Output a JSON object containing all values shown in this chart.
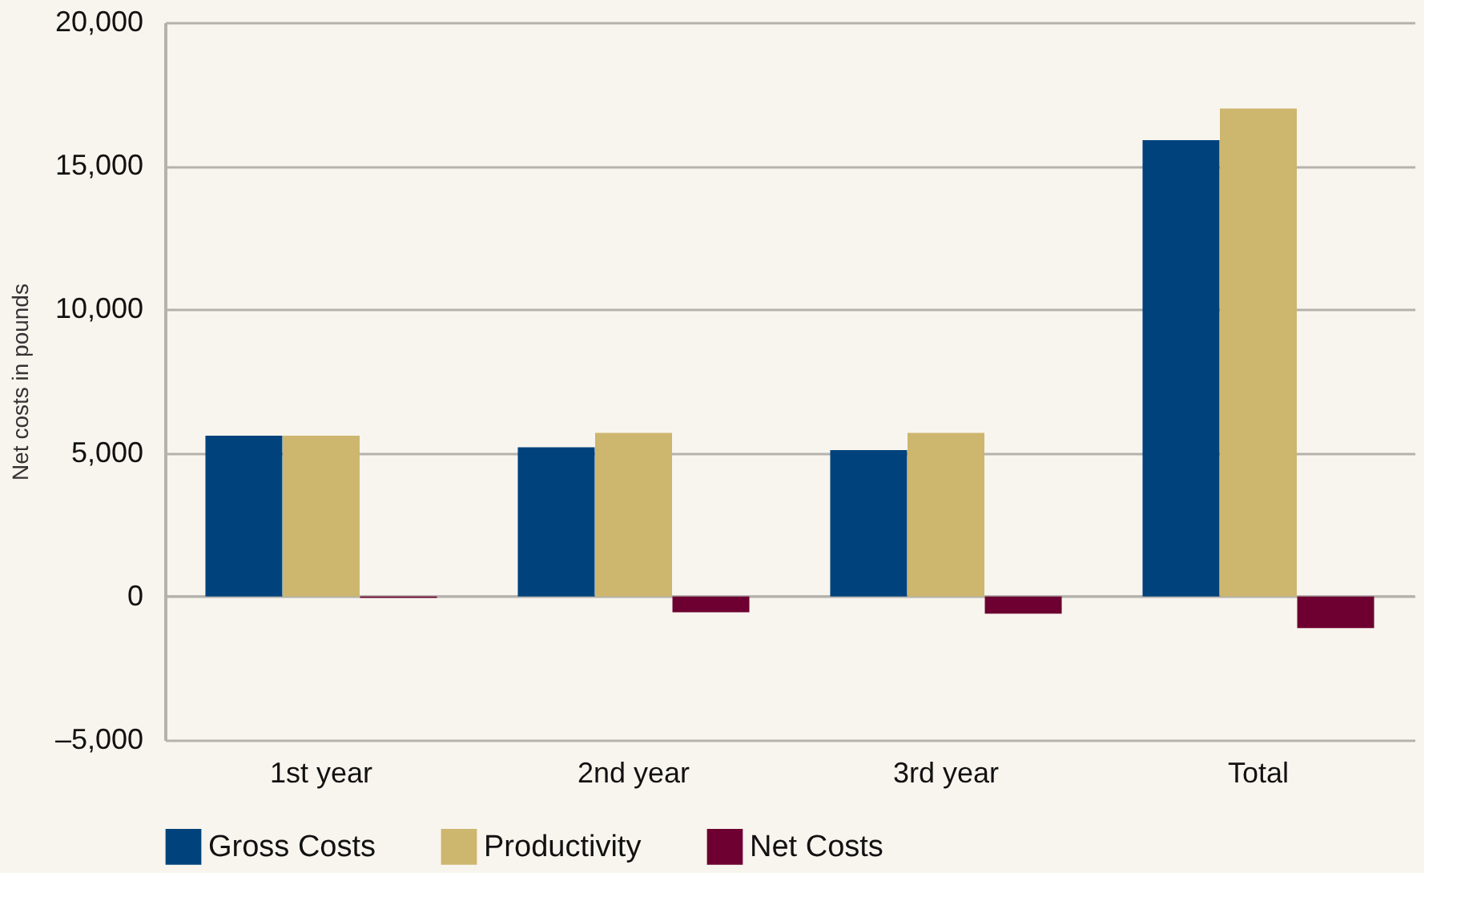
{
  "chart_data": {
    "type": "bar",
    "ylabel": "Net costs in pounds",
    "categories": [
      "1st year",
      "2nd year",
      "3rd year",
      "Total"
    ],
    "series": [
      {
        "name": "Gross Costs",
        "color": "#00437c",
        "values": [
          5600,
          5200,
          5100,
          15900
        ]
      },
      {
        "name": "Productivity",
        "color": "#cdb66e",
        "values": [
          5600,
          5700,
          5700,
          17000
        ]
      },
      {
        "name": "Net Costs",
        "color": "#6d0030",
        "values": [
          -50,
          -550,
          -600,
          -1100
        ]
      }
    ],
    "ylim": [
      -5000,
      20000
    ],
    "yticks": [
      {
        "value": -5000,
        "label": "–5,000"
      },
      {
        "value": 0,
        "label": "0"
      },
      {
        "value": 5000,
        "label": "5,000"
      },
      {
        "value": 10000,
        "label": "10,000"
      },
      {
        "value": 15000,
        "label": "15,000"
      },
      {
        "value": 20000,
        "label": "20,000"
      }
    ],
    "grid": "y",
    "legend": "bottom left"
  }
}
